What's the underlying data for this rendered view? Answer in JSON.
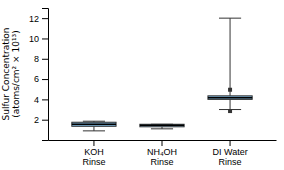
{
  "chart_data": {
    "type": "box",
    "categories": [
      "KOH\nRinse",
      "NH₄OH\nRinse",
      "DI Water\nRinse"
    ],
    "boxes": [
      {
        "q1": 1.35,
        "median": 1.55,
        "q3": 1.75,
        "whislo": 0.9,
        "whishi": 1.85,
        "fliers": []
      },
      {
        "q1": 1.3,
        "median": 1.45,
        "q3": 1.55,
        "whislo": 1.1,
        "whishi": 1.55,
        "fliers": []
      },
      {
        "q1": 4.0,
        "median": 4.15,
        "q3": 4.35,
        "whislo": 3.0,
        "whishi": 12.0,
        "fliers": [
          2.85,
          4.95
        ]
      }
    ],
    "ylabel": "Sulfur Concentration\n(atoms/cm² × 10¹³)",
    "ylim": [
      0,
      13
    ],
    "yticks": [
      2,
      4,
      6,
      8,
      10,
      12
    ]
  }
}
